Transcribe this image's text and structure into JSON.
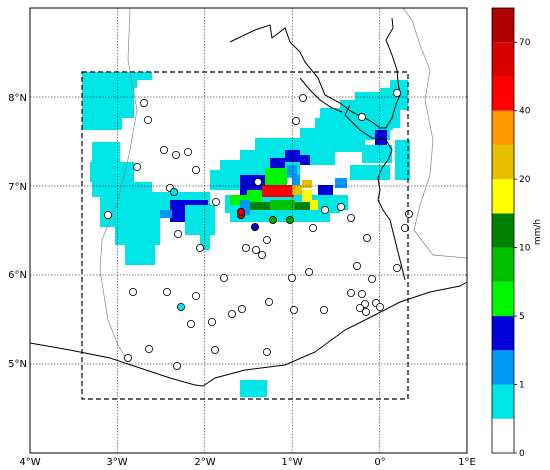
{
  "map": {
    "x_labels": [
      "4°W",
      "3°W",
      "2°W",
      "1°W",
      "0°",
      "1°E"
    ],
    "y_labels": [
      "8°N",
      "7°N",
      "6°N",
      "5°N"
    ],
    "lon_range": [
      -4,
      1
    ],
    "lat_range": [
      4.0,
      9.0
    ],
    "domain_box": {
      "lon": [
        -3.4,
        0.3
      ],
      "lat": [
        4.6,
        8.3
      ]
    },
    "grid": true
  },
  "colorbar": {
    "unit": "mm/h",
    "tick_labels": [
      "0",
      "1",
      "5",
      "10",
      "20",
      "40",
      "70"
    ],
    "colors": [
      "#ffffff",
      "#00e5e5",
      "#0099f5",
      "#0000d9",
      "#00f500",
      "#00c000",
      "#008000",
      "#ffff00",
      "#e6c000",
      "#ff9900",
      "#ff0000",
      "#d90000",
      "#b00000"
    ]
  },
  "rain_fill_color": "#00e5e5",
  "stations": {
    "default_color": "#ffffff",
    "highlight_colors": {
      "cyan": "#00e5e5",
      "blue": "#0000cc",
      "green": "#00a000",
      "red": "#e00000"
    }
  }
}
